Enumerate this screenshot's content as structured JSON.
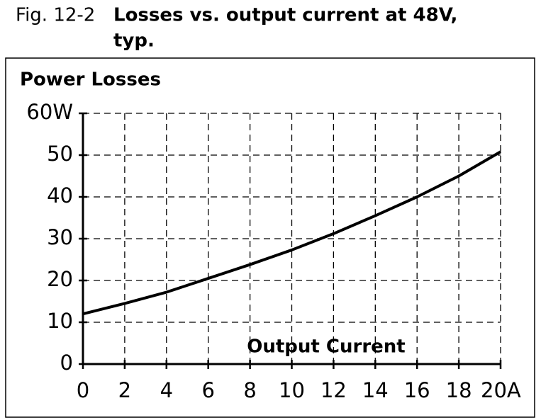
{
  "chart_data": {
    "type": "line",
    "fig_label": "Fig. 12-2",
    "title": [
      "Losses vs. output current at 48V,",
      "typ."
    ],
    "y_label": "Power Losses",
    "x_label": "Output Current",
    "x": [
      0,
      2,
      4,
      6,
      8,
      10,
      12,
      14,
      16,
      18,
      20
    ],
    "values": [
      12,
      14.5,
      17.2,
      20.5,
      23.8,
      27.3,
      31.2,
      35.5,
      40,
      45,
      50.8
    ],
    "color": "#000000",
    "xlim": [
      0,
      20
    ],
    "xticks": [
      0,
      2,
      4,
      6,
      8,
      10,
      12,
      14,
      16,
      18,
      {
        "value": 20,
        "label": "20A"
      }
    ],
    "ylim": [
      0,
      60
    ],
    "yticks": [
      0,
      10,
      20,
      30,
      40,
      50,
      {
        "value": 60,
        "label": "60W"
      }
    ],
    "grid": true
  }
}
